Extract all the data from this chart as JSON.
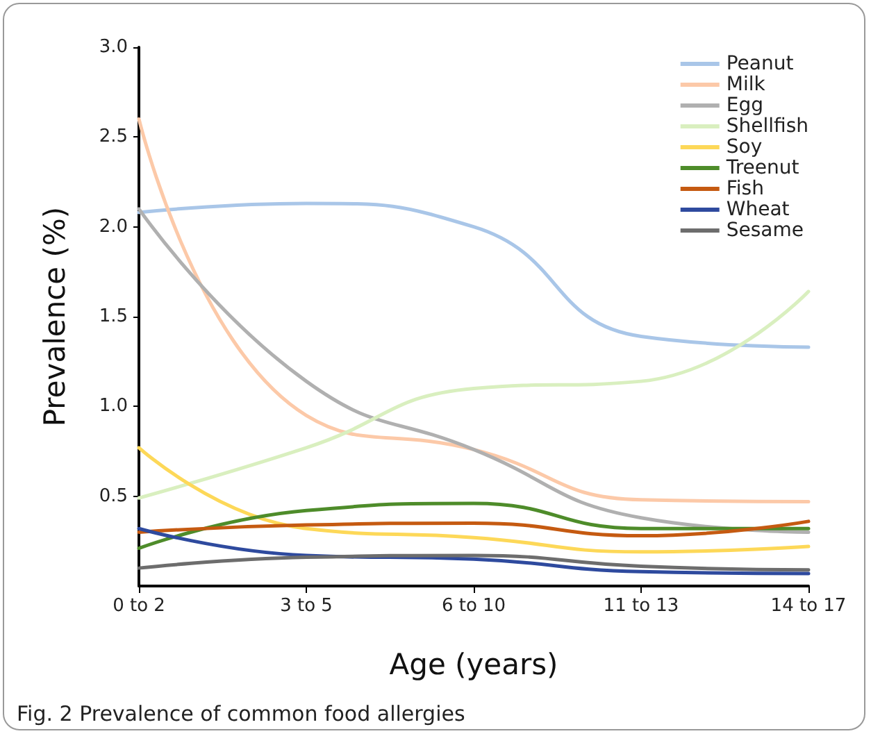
{
  "chart_data": {
    "type": "line",
    "xlabel": "Age (years)",
    "ylabel": "Prevalence (%)",
    "annotations": [
      "Fig. 2 Prevalence of common food allergies"
    ],
    "categories": [
      "0 to 2",
      "3 to 5",
      "6 to 10",
      "11 to 13",
      "14 to 17"
    ],
    "ylim": [
      0,
      3
    ],
    "yticks": [
      {
        "value": 0.5,
        "label": "0.5"
      },
      {
        "value": 1,
        "label": "1.0"
      },
      {
        "value": 1.5,
        "label": "1.5"
      },
      {
        "value": 2,
        "label": "2.0"
      },
      {
        "value": 2.5,
        "label": "2.5"
      },
      {
        "value": 3,
        "label": "3.0"
      }
    ],
    "grid": false,
    "legend": "top right",
    "marker": "none",
    "line_style": "solid",
    "series": [
      {
        "name": "Peanut",
        "color": "#a9c6e8",
        "values": [
          2.08,
          2.13,
          2.0,
          1.39,
          1.33
        ]
      },
      {
        "name": "Milk",
        "color": "#fcc9a8",
        "values": [
          2.6,
          0.95,
          0.76,
          0.48,
          0.47
        ]
      },
      {
        "name": "Egg",
        "color": "#b0b0b0",
        "values": [
          2.1,
          1.14,
          0.76,
          0.38,
          0.3
        ]
      },
      {
        "name": "Shellfish",
        "color": "#d9efbf",
        "values": [
          0.49,
          0.77,
          1.1,
          1.14,
          1.64
        ]
      },
      {
        "name": "Soy",
        "color": "#fdd858",
        "values": [
          0.77,
          0.32,
          0.27,
          0.19,
          0.22
        ]
      },
      {
        "name": "Treenut",
        "color": "#4e8c2a",
        "values": [
          0.21,
          0.42,
          0.46,
          0.32,
          0.32
        ]
      },
      {
        "name": "Fish",
        "color": "#c55a11",
        "values": [
          0.3,
          0.34,
          0.35,
          0.28,
          0.36
        ]
      },
      {
        "name": "Wheat",
        "color": "#2e4a9e",
        "values": [
          0.32,
          0.17,
          0.15,
          0.08,
          0.07
        ]
      },
      {
        "name": "Sesame",
        "color": "#6d6d6d",
        "values": [
          0.1,
          0.16,
          0.17,
          0.11,
          0.09
        ]
      }
    ]
  }
}
